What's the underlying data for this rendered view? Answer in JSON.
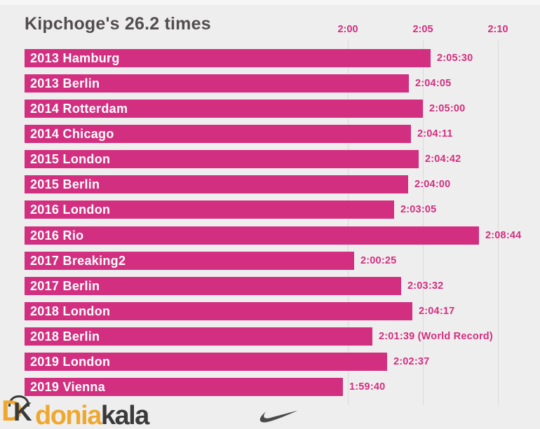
{
  "title": "Kipchoge's 26.2 times",
  "colors": {
    "background": "#efeeee",
    "bar": "#d32f80",
    "bar_label_text": "#ffffff",
    "time_text": "#d32f80",
    "axis_text": "#d32f80",
    "gridline": "#dbdadb",
    "title_text": "#524e4e",
    "logo_gold": "#efa82f",
    "logo_dark": "#3b3a3a",
    "swoosh": "#4a4a4a"
  },
  "chart_data": {
    "type": "bar",
    "orientation": "horizontal",
    "title": "Kipchoge's 26.2 times",
    "grid": true,
    "axis": {
      "unit": "h:mm marathon time",
      "position": "top",
      "xlim_minutes": [
        98.5,
        132.8
      ],
      "ticks": [
        {
          "label": "2:00",
          "minutes": 120
        },
        {
          "label": "2:05",
          "minutes": 125
        },
        {
          "label": "2:10",
          "minutes": 130
        }
      ]
    },
    "races": [
      {
        "label": "2013 Hamburg",
        "time": "2:05:30",
        "annotation": ""
      },
      {
        "label": "2013 Berlin",
        "time": "2:04:05",
        "annotation": ""
      },
      {
        "label": "2014 Rotterdam",
        "time": "2:05:00",
        "annotation": ""
      },
      {
        "label": "2014 Chicago",
        "time": "2:04:11",
        "annotation": ""
      },
      {
        "label": "2015 London",
        "time": "2:04:42",
        "annotation": ""
      },
      {
        "label": "2015 Berlin",
        "time": "2:04:00",
        "annotation": ""
      },
      {
        "label": "2016 London",
        "time": "2:03:05",
        "annotation": ""
      },
      {
        "label": "2016 Rio",
        "time": "2:08:44",
        "annotation": ""
      },
      {
        "label": "2017 Breaking2",
        "time": "2:00:25",
        "annotation": ""
      },
      {
        "label": "2017 Berlin",
        "time": "2:03:32",
        "annotation": ""
      },
      {
        "label": "2018 London",
        "time": "2:04:17",
        "annotation": ""
      },
      {
        "label": "2018 Berlin",
        "time": "2:01:39",
        "annotation": "(World Record)"
      },
      {
        "label": "2019 London",
        "time": "2:02:37",
        "annotation": ""
      },
      {
        "label": "2019 Vienna",
        "time": "1:59:40",
        "annotation": ""
      }
    ]
  },
  "footer": {
    "monogram_d": "D",
    "monogram_k": "K",
    "logo_text_gold": "donia",
    "logo_text_dark": "kala",
    "brand_icon": "nike-swoosh"
  }
}
